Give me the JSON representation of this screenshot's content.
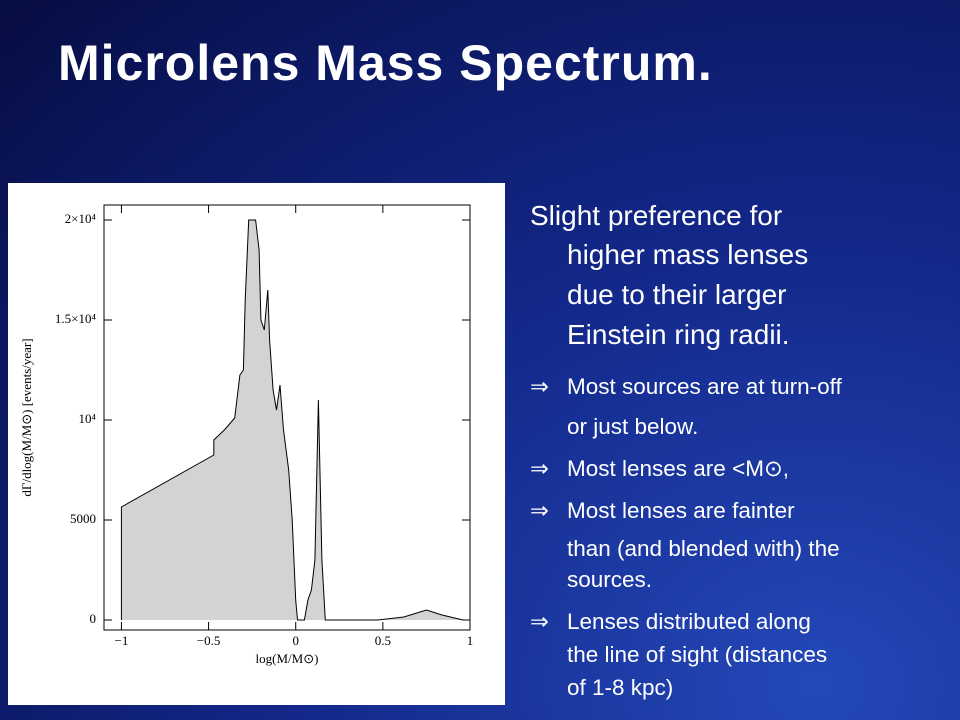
{
  "header": {
    "title": "Microlens Mass Spectrum."
  },
  "text": {
    "lead": [
      "Slight preference for",
      "higher mass lenses",
      "due to their larger",
      "Einstein ring radii."
    ],
    "bullet": "⇒",
    "bullets": [
      [
        "Most sources are at turn-off",
        "or just below."
      ],
      [
        "Most lenses are <M⊙,"
      ],
      [
        "Most lenses are fainter",
        "than (and blended with) the",
        "sources."
      ],
      [
        "Lenses distributed along",
        "the line of sight (distances",
        "of 1-8 kpc)"
      ]
    ]
  },
  "chart_data": {
    "type": "area",
    "xlabel": "log(M/M⊙)",
    "ylabel": "dΓ/dlog(M/M⊙) [events/year]",
    "x": [
      -1.0,
      -0.47,
      -0.47,
      -0.41,
      -0.35,
      -0.32,
      -0.3,
      -0.29,
      -0.27,
      -0.23,
      -0.21,
      -0.2,
      -0.18,
      -0.16,
      -0.15,
      -0.13,
      -0.11,
      -0.09,
      -0.07,
      -0.04,
      -0.02,
      0,
      0.01,
      0.05,
      0.07,
      0.09,
      0.11,
      0.13,
      0.15,
      0.17,
      0.47,
      0.62,
      0.75,
      0.84,
      0.96
    ],
    "values": [
      5650,
      8250,
      9000,
      9500,
      10100,
      12250,
      12500,
      16000,
      20000,
      20000,
      18500,
      15000,
      14500,
      16500,
      14000,
      11500,
      10500,
      11750,
      9500,
      7500,
      5000,
      1000,
      0,
      0,
      1000,
      1500,
      3000,
      11000,
      3000,
      0,
      0,
      150,
      500,
      250,
      0
    ],
    "color": "#d3d3d3",
    "xlim": [
      -1.1,
      1.0
    ],
    "ylim": [
      -500,
      20750
    ],
    "xticks": [
      {
        "value": -1,
        "label": "−1"
      },
      {
        "value": -0.5,
        "label": "−0.5"
      },
      0,
      0.5,
      1
    ],
    "yticks": [
      0,
      5000,
      {
        "value": 10000,
        "label": "10⁴"
      },
      {
        "value": 15000,
        "label": "1.5×10⁴"
      },
      {
        "value": 20000,
        "label": "2×10⁴"
      }
    ]
  }
}
